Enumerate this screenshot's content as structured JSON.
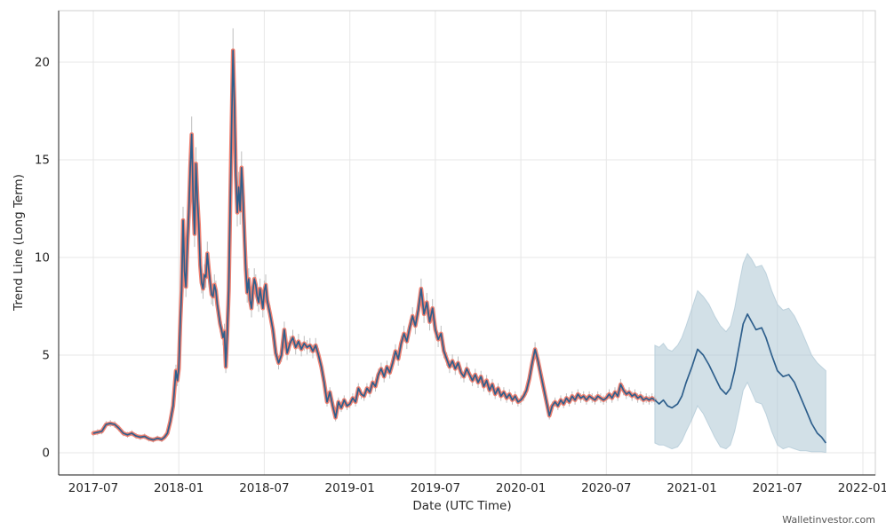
{
  "watermark": "Walletinvestor.com",
  "chart_data": {
    "type": "line",
    "title": "",
    "xlabel": "Date (UTC Time)",
    "ylabel": "Trend Line (Long Term)",
    "x_tick_labels": [
      "2017-07",
      "2018-01",
      "2018-07",
      "2019-01",
      "2019-07",
      "2020-01",
      "2020-07",
      "2021-01",
      "2021-07",
      "2022-01"
    ],
    "x_tick_interval_months": 6,
    "x_domain_months": 54,
    "y_ticks": [
      0,
      5,
      10,
      15,
      20
    ],
    "y_tick_labels": [
      "0",
      "5",
      "10",
      "15",
      "20"
    ],
    "ylim": [
      -1.1,
      22.7
    ],
    "grid": true,
    "legend": "none",
    "notes": "Historical price with salmon outline and gray high-low whiskers; forecast line with shaded confidence band on right side. x values are months since 2017-07.",
    "colors": {
      "line": "#2e5f8c",
      "historical_outline": "#ee8172",
      "forecast_band": "#adc6d4",
      "error_bar": "#bdbdbd",
      "grid": "#e7e7e7",
      "frame": "#cfcfcf",
      "axis": "#444444",
      "text": "#262626",
      "watermark": "#555555"
    },
    "series": [
      {
        "name": "historical",
        "points": [
          [
            0,
            1.0
          ],
          [
            0.3,
            1.05
          ],
          [
            0.6,
            1.1
          ],
          [
            0.9,
            1.45
          ],
          [
            1.2,
            1.5
          ],
          [
            1.5,
            1.45
          ],
          [
            1.8,
            1.25
          ],
          [
            2.1,
            1.0
          ],
          [
            2.4,
            0.92
          ],
          [
            2.7,
            1.0
          ],
          [
            3.0,
            0.86
          ],
          [
            3.3,
            0.8
          ],
          [
            3.6,
            0.84
          ],
          [
            3.9,
            0.72
          ],
          [
            4.2,
            0.66
          ],
          [
            4.5,
            0.74
          ],
          [
            4.8,
            0.68
          ],
          [
            5.0,
            0.8
          ],
          [
            5.2,
            1.0
          ],
          [
            5.4,
            1.6
          ],
          [
            5.6,
            2.4
          ],
          [
            5.8,
            4.2
          ],
          [
            5.9,
            3.7
          ],
          [
            6.0,
            4.3
          ],
          [
            6.1,
            6.6
          ],
          [
            6.2,
            8.3
          ],
          [
            6.3,
            11.9
          ],
          [
            6.4,
            9.3
          ],
          [
            6.5,
            8.5
          ],
          [
            6.6,
            10.6
          ],
          [
            6.7,
            12.2
          ],
          [
            6.8,
            14.6
          ],
          [
            6.9,
            16.3
          ],
          [
            7.0,
            13.1
          ],
          [
            7.1,
            11.2
          ],
          [
            7.2,
            14.8
          ],
          [
            7.3,
            13.0
          ],
          [
            7.4,
            11.7
          ],
          [
            7.5,
            9.6
          ],
          [
            7.6,
            8.7
          ],
          [
            7.7,
            8.4
          ],
          [
            7.8,
            9.1
          ],
          [
            7.9,
            9.0
          ],
          [
            8.0,
            10.2
          ],
          [
            8.1,
            9.4
          ],
          [
            8.2,
            8.7
          ],
          [
            8.3,
            8.1
          ],
          [
            8.4,
            8.0
          ],
          [
            8.5,
            8.6
          ],
          [
            8.6,
            8.3
          ],
          [
            8.7,
            7.6
          ],
          [
            8.8,
            7.1
          ],
          [
            8.9,
            6.6
          ],
          [
            9.0,
            6.3
          ],
          [
            9.1,
            5.9
          ],
          [
            9.2,
            6.2
          ],
          [
            9.3,
            4.4
          ],
          [
            9.4,
            6.1
          ],
          [
            9.5,
            8.3
          ],
          [
            9.6,
            12.5
          ],
          [
            9.7,
            16.6
          ],
          [
            9.8,
            20.6
          ],
          [
            9.9,
            17.8
          ],
          [
            10.0,
            14.2
          ],
          [
            10.1,
            12.3
          ],
          [
            10.2,
            13.6
          ],
          [
            10.3,
            12.4
          ],
          [
            10.4,
            14.6
          ],
          [
            10.5,
            13.1
          ],
          [
            10.6,
            11.2
          ],
          [
            10.7,
            9.4
          ],
          [
            10.8,
            8.2
          ],
          [
            10.9,
            8.9
          ],
          [
            11.0,
            7.8
          ],
          [
            11.1,
            7.4
          ],
          [
            11.2,
            8.3
          ],
          [
            11.3,
            8.9
          ],
          [
            11.4,
            8.6
          ],
          [
            11.5,
            8.0
          ],
          [
            11.6,
            7.7
          ],
          [
            11.7,
            8.4
          ],
          [
            11.8,
            7.9
          ],
          [
            11.9,
            7.4
          ],
          [
            12.0,
            8.3
          ],
          [
            12.1,
            8.6
          ],
          [
            12.2,
            7.8
          ],
          [
            12.4,
            7.1
          ],
          [
            12.6,
            6.3
          ],
          [
            12.8,
            5.1
          ],
          [
            13.0,
            4.6
          ],
          [
            13.2,
            5.0
          ],
          [
            13.4,
            6.3
          ],
          [
            13.6,
            5.1
          ],
          [
            13.8,
            5.6
          ],
          [
            14.0,
            5.9
          ],
          [
            14.2,
            5.4
          ],
          [
            14.4,
            5.7
          ],
          [
            14.6,
            5.3
          ],
          [
            14.8,
            5.6
          ],
          [
            15.0,
            5.4
          ],
          [
            15.2,
            5.5
          ],
          [
            15.4,
            5.2
          ],
          [
            15.6,
            5.5
          ],
          [
            15.8,
            5.0
          ],
          [
            16.0,
            4.4
          ],
          [
            16.2,
            3.6
          ],
          [
            16.4,
            2.6
          ],
          [
            16.6,
            3.1
          ],
          [
            16.8,
            2.4
          ],
          [
            17.0,
            1.8
          ],
          [
            17.2,
            2.6
          ],
          [
            17.4,
            2.3
          ],
          [
            17.6,
            2.7
          ],
          [
            17.8,
            2.4
          ],
          [
            18.0,
            2.5
          ],
          [
            18.2,
            2.8
          ],
          [
            18.4,
            2.6
          ],
          [
            18.6,
            3.3
          ],
          [
            18.8,
            3.0
          ],
          [
            19.0,
            2.9
          ],
          [
            19.2,
            3.3
          ],
          [
            19.4,
            3.1
          ],
          [
            19.6,
            3.6
          ],
          [
            19.8,
            3.4
          ],
          [
            20.0,
            4.0
          ],
          [
            20.2,
            4.3
          ],
          [
            20.4,
            3.9
          ],
          [
            20.6,
            4.4
          ],
          [
            20.8,
            4.1
          ],
          [
            21.0,
            4.6
          ],
          [
            21.2,
            5.2
          ],
          [
            21.4,
            4.8
          ],
          [
            21.6,
            5.6
          ],
          [
            21.8,
            6.1
          ],
          [
            22.0,
            5.7
          ],
          [
            22.2,
            6.4
          ],
          [
            22.4,
            7.0
          ],
          [
            22.6,
            6.5
          ],
          [
            22.8,
            7.3
          ],
          [
            23.0,
            8.4
          ],
          [
            23.2,
            7.1
          ],
          [
            23.4,
            7.7
          ],
          [
            23.6,
            6.7
          ],
          [
            23.8,
            7.4
          ],
          [
            24.0,
            6.3
          ],
          [
            24.2,
            5.8
          ],
          [
            24.4,
            6.1
          ],
          [
            24.6,
            5.2
          ],
          [
            24.8,
            4.8
          ],
          [
            25.0,
            4.4
          ],
          [
            25.2,
            4.7
          ],
          [
            25.4,
            4.3
          ],
          [
            25.6,
            4.6
          ],
          [
            25.8,
            4.1
          ],
          [
            26.0,
            3.9
          ],
          [
            26.2,
            4.3
          ],
          [
            26.4,
            4.0
          ],
          [
            26.6,
            3.7
          ],
          [
            26.8,
            4.0
          ],
          [
            27.0,
            3.6
          ],
          [
            27.2,
            3.9
          ],
          [
            27.4,
            3.4
          ],
          [
            27.6,
            3.7
          ],
          [
            27.8,
            3.2
          ],
          [
            28.0,
            3.5
          ],
          [
            28.2,
            3.0
          ],
          [
            28.4,
            3.3
          ],
          [
            28.6,
            2.9
          ],
          [
            28.8,
            3.1
          ],
          [
            29.0,
            2.8
          ],
          [
            29.2,
            3.0
          ],
          [
            29.4,
            2.7
          ],
          [
            29.6,
            2.9
          ],
          [
            29.8,
            2.6
          ],
          [
            30.0,
            2.7
          ],
          [
            30.2,
            2.9
          ],
          [
            30.4,
            3.2
          ],
          [
            30.6,
            3.8
          ],
          [
            30.8,
            4.6
          ],
          [
            31.0,
            5.3
          ],
          [
            31.2,
            4.7
          ],
          [
            31.4,
            4.0
          ],
          [
            31.6,
            3.3
          ],
          [
            31.8,
            2.6
          ],
          [
            32.0,
            1.9
          ],
          [
            32.2,
            2.4
          ],
          [
            32.4,
            2.6
          ],
          [
            32.6,
            2.4
          ],
          [
            32.8,
            2.7
          ],
          [
            33.0,
            2.5
          ],
          [
            33.2,
            2.8
          ],
          [
            33.4,
            2.6
          ],
          [
            33.6,
            2.9
          ],
          [
            33.8,
            2.7
          ],
          [
            34.0,
            3.0
          ],
          [
            34.2,
            2.8
          ],
          [
            34.4,
            2.9
          ],
          [
            34.6,
            2.7
          ],
          [
            34.8,
            2.9
          ],
          [
            35.0,
            2.8
          ],
          [
            35.2,
            2.7
          ],
          [
            35.4,
            2.9
          ],
          [
            35.6,
            2.8
          ],
          [
            35.8,
            2.7
          ],
          [
            36.0,
            2.8
          ],
          [
            36.2,
            3.0
          ],
          [
            36.4,
            2.8
          ],
          [
            36.6,
            3.1
          ],
          [
            36.8,
            2.9
          ],
          [
            37.0,
            3.5
          ],
          [
            37.2,
            3.2
          ],
          [
            37.4,
            3.0
          ],
          [
            37.6,
            3.1
          ],
          [
            37.8,
            2.9
          ],
          [
            38.0,
            3.0
          ],
          [
            38.2,
            2.8
          ],
          [
            38.4,
            2.9
          ],
          [
            38.6,
            2.7
          ],
          [
            38.8,
            2.8
          ],
          [
            39.0,
            2.7
          ],
          [
            39.2,
            2.8
          ],
          [
            39.4,
            2.7
          ]
        ],
        "whisker_pct": 0.05
      },
      {
        "name": "forecast",
        "points": [
          [
            39.4,
            2.7,
            0.5,
            5.5
          ],
          [
            39.7,
            2.5,
            0.4,
            5.4
          ],
          [
            40.0,
            2.7,
            0.4,
            5.6
          ],
          [
            40.3,
            2.4,
            0.3,
            5.3
          ],
          [
            40.6,
            2.3,
            0.2,
            5.2
          ],
          [
            41.0,
            2.5,
            0.3,
            5.5
          ],
          [
            41.3,
            2.9,
            0.6,
            5.9
          ],
          [
            41.6,
            3.6,
            1.1,
            6.5
          ],
          [
            42.0,
            4.4,
            1.7,
            7.4
          ],
          [
            42.4,
            5.3,
            2.4,
            8.3
          ],
          [
            42.8,
            5.0,
            2.0,
            8.0
          ],
          [
            43.2,
            4.5,
            1.4,
            7.6
          ],
          [
            43.6,
            3.9,
            0.8,
            7.0
          ],
          [
            44.0,
            3.3,
            0.3,
            6.5
          ],
          [
            44.4,
            3.0,
            0.2,
            6.2
          ],
          [
            44.7,
            3.3,
            0.4,
            6.5
          ],
          [
            45.0,
            4.2,
            1.1,
            7.4
          ],
          [
            45.3,
            5.4,
            2.1,
            8.6
          ],
          [
            45.6,
            6.6,
            3.2,
            9.7
          ],
          [
            45.9,
            7.1,
            3.6,
            10.2
          ],
          [
            46.2,
            6.7,
            3.1,
            9.9
          ],
          [
            46.5,
            6.3,
            2.6,
            9.5
          ],
          [
            46.9,
            6.4,
            2.5,
            9.6
          ],
          [
            47.2,
            5.9,
            2.0,
            9.2
          ],
          [
            47.6,
            5.0,
            1.1,
            8.3
          ],
          [
            48.0,
            4.2,
            0.4,
            7.6
          ],
          [
            48.4,
            3.9,
            0.2,
            7.3
          ],
          [
            48.8,
            4.0,
            0.3,
            7.4
          ],
          [
            49.2,
            3.6,
            0.2,
            7.0
          ],
          [
            49.6,
            2.9,
            0.1,
            6.4
          ],
          [
            50.0,
            2.2,
            0.1,
            5.7
          ],
          [
            50.4,
            1.5,
            0.05,
            5.0
          ],
          [
            50.8,
            1.0,
            0.05,
            4.6
          ],
          [
            51.1,
            0.8,
            0.05,
            4.4
          ],
          [
            51.4,
            0.5,
            0.02,
            4.2
          ]
        ]
      }
    ]
  }
}
